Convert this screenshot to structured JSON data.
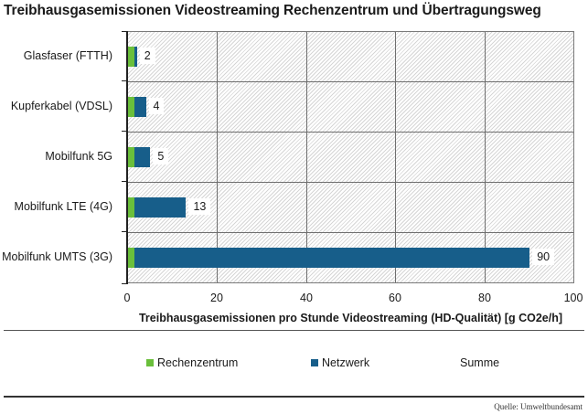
{
  "title": "Treibhausgasemissionen Videostreaming Rechenzentrum und Übertragungsweg",
  "colors": {
    "rechenzentrum": "#6abf3b",
    "netzwerk": "#175e8a",
    "grid": "#6e6e6e",
    "axis": "#222222"
  },
  "chart_data": {
    "type": "bar",
    "orientation": "horizontal",
    "stacked": true,
    "title": "Treibhausgasemissionen Videostreaming Rechenzentrum und Übertragungsweg",
    "xlabel": "Treibhausgasemissionen pro Stunde Videostreaming (HD-Qualität) [g CO2e/h]",
    "ylabel": "",
    "xlim": [
      0,
      100
    ],
    "xticks": [
      0,
      20,
      40,
      60,
      80,
      100
    ],
    "categories": [
      "Glasfaser (FTTH)",
      "Kupferkabel (VDSL)",
      "Mobilfunk 5G",
      "Mobilfunk LTE (4G)",
      "Mobilfunk UMTS (3G)"
    ],
    "series": [
      {
        "name": "Rechenzentrum",
        "color": "#6abf3b",
        "values": [
          1.5,
          1.5,
          1.5,
          1.5,
          1.5
        ]
      },
      {
        "name": "Netzwerk",
        "color": "#175e8a",
        "values": [
          0.5,
          2.5,
          3.5,
          11.5,
          88.5
        ]
      },
      {
        "name": "Summe",
        "values": [
          2,
          4,
          5,
          13,
          90
        ]
      }
    ],
    "data_labels": [
      "2",
      "4",
      "5",
      "13",
      "90"
    ],
    "legend_position": "bottom",
    "grid": true
  },
  "axis": {
    "xticks": [
      "0",
      "20",
      "40",
      "60",
      "80",
      "100"
    ],
    "xlabel": "Treibhausgasemissionen pro Stunde Videostreaming (HD-Qualität) [g CO2e/h]"
  },
  "rows": [
    {
      "label": "Glasfaser (FTTH)",
      "value_label": "2"
    },
    {
      "label": "Kupferkabel (VDSL)",
      "value_label": "4"
    },
    {
      "label": "Mobilfunk 5G",
      "value_label": "5"
    },
    {
      "label": "Mobilfunk LTE (4G)",
      "value_label": "13"
    },
    {
      "label": "Mobilfunk UMTS (3G)",
      "value_label": "90"
    }
  ],
  "legend": {
    "items": [
      {
        "label": "Rechenzentrum"
      },
      {
        "label": "Netzwerk"
      },
      {
        "label": "Summe"
      }
    ]
  },
  "source": "Quelle: Umweltbundesamt"
}
